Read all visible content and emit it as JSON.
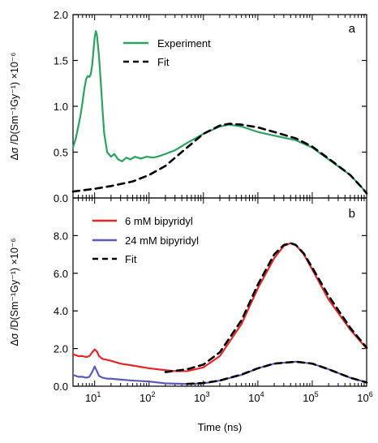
{
  "chart_data": [
    {
      "panel": "a",
      "type": "line",
      "xscale": "log",
      "xlim": [
        4,
        1000000
      ],
      "ylim": [
        0,
        2.0
      ],
      "yticks": [
        "0.0",
        "0.5",
        "1.0",
        "1.5",
        "2.0"
      ],
      "ylabel": "Δσ /D(Sm⁻¹Gy⁻¹) ×10⁻⁶",
      "legend": [
        "Experiment",
        "Fit"
      ],
      "legend_position": "top-center",
      "series": [
        {
          "name": "Experiment",
          "color": "#2ca25f",
          "style": "solid",
          "x": [
            4,
            4.5,
            5,
            5.5,
            6,
            6.5,
            7,
            7.5,
            8,
            8.5,
            9,
            9.5,
            10,
            10.5,
            11,
            12,
            13,
            14,
            15,
            17,
            20,
            23,
            27,
            32,
            38,
            45,
            55,
            70,
            90,
            120,
            160,
            200,
            300,
            500,
            1000,
            2000,
            3000,
            5000,
            10000,
            20000,
            50000,
            100000,
            200000,
            500000,
            800000,
            1000000
          ],
          "y": [
            0.55,
            0.65,
            0.78,
            0.9,
            1.05,
            1.2,
            1.3,
            1.33,
            1.32,
            1.35,
            1.45,
            1.6,
            1.75,
            1.82,
            1.78,
            1.55,
            1.25,
            0.95,
            0.7,
            0.5,
            0.45,
            0.48,
            0.42,
            0.4,
            0.44,
            0.42,
            0.45,
            0.43,
            0.45,
            0.44,
            0.46,
            0.48,
            0.52,
            0.6,
            0.7,
            0.78,
            0.8,
            0.78,
            0.72,
            0.68,
            0.63,
            0.55,
            0.42,
            0.25,
            0.12,
            0.05
          ]
        },
        {
          "name": "Fit",
          "color": "#000000",
          "style": "dashed",
          "x": [
            4,
            10,
            20,
            50,
            100,
            200,
            500,
            1000,
            2000,
            3000,
            5000,
            10000,
            20000,
            50000,
            100000,
            200000,
            500000,
            800000,
            1000000
          ],
          "y": [
            0.07,
            0.1,
            0.13,
            0.18,
            0.25,
            0.35,
            0.55,
            0.7,
            0.79,
            0.81,
            0.8,
            0.77,
            0.72,
            0.65,
            0.56,
            0.43,
            0.25,
            0.12,
            0.05
          ]
        }
      ]
    },
    {
      "panel": "b",
      "type": "line",
      "xscale": "log",
      "xlim": [
        4,
        1000000
      ],
      "ylim": [
        0,
        10.0
      ],
      "yticks": [
        "0.0",
        "2.0",
        "4.0",
        "6.0",
        "8.0"
      ],
      "xticks": [
        "10¹",
        "10²",
        "10³",
        "10⁴",
        "10⁵",
        "10⁶"
      ],
      "xlabel": "Time (ns)",
      "ylabel": "Δσ /D(Sm⁻¹Gy⁻¹) ×10⁻⁶",
      "legend": [
        "6 mM bipyridyl",
        "24 mM bipyridyl",
        "Fit"
      ],
      "legend_position": "top-left",
      "series": [
        {
          "name": "6 mM bipyridyl",
          "color": "#e32626",
          "style": "solid",
          "x": [
            4,
            5,
            6,
            7,
            8,
            9,
            10,
            11,
            12,
            14,
            17,
            20,
            30,
            50,
            100,
            200,
            300,
            500,
            1000,
            2000,
            5000,
            10000,
            20000,
            30000,
            40000,
            50000,
            70000,
            100000,
            200000,
            500000,
            1000000
          ],
          "y": [
            1.7,
            1.6,
            1.6,
            1.55,
            1.6,
            1.8,
            1.95,
            1.85,
            1.6,
            1.45,
            1.4,
            1.35,
            1.2,
            1.1,
            0.95,
            0.85,
            0.8,
            0.8,
            1.0,
            1.6,
            3.3,
            5.2,
            6.8,
            7.45,
            7.6,
            7.5,
            7.0,
            6.2,
            4.6,
            3.0,
            2.0
          ]
        },
        {
          "name": "24 mM bipyridyl",
          "color": "#5a5ab8",
          "style": "solid",
          "x": [
            4,
            5,
            6,
            7,
            8,
            9,
            10,
            11,
            12,
            14,
            17,
            20,
            30,
            50,
            100,
            200,
            500,
            1000,
            2000,
            5000,
            10000,
            20000,
            50000,
            100000,
            200000,
            500000,
            1000000
          ],
          "y": [
            0.6,
            0.5,
            0.5,
            0.45,
            0.5,
            0.75,
            1.05,
            0.8,
            0.55,
            0.45,
            0.4,
            0.4,
            0.35,
            0.3,
            0.25,
            0.15,
            0.12,
            0.15,
            0.3,
            0.6,
            0.95,
            1.2,
            1.3,
            1.2,
            0.9,
            0.45,
            0.2
          ]
        },
        {
          "name": "Fit",
          "color": "#000000",
          "style": "dashed",
          "x": [
            200,
            500,
            1000,
            2000,
            5000,
            10000,
            20000,
            30000,
            40000,
            50000,
            70000,
            100000,
            200000,
            500000,
            1000000
          ],
          "y": [
            0.75,
            0.9,
            1.15,
            1.8,
            3.5,
            5.4,
            7.0,
            7.5,
            7.6,
            7.5,
            7.05,
            6.3,
            4.8,
            3.1,
            2.05
          ]
        },
        {
          "name": "Fit (24 mM)",
          "color": "#000000",
          "style": "dashed",
          "x": [
            500,
            1000,
            2000,
            5000,
            10000,
            20000,
            50000,
            100000,
            200000,
            500000,
            1000000
          ],
          "y": [
            0.12,
            0.17,
            0.3,
            0.62,
            0.95,
            1.2,
            1.3,
            1.2,
            0.9,
            0.45,
            0.2
          ]
        }
      ]
    }
  ],
  "labels": {
    "panel_a_letter": "a",
    "panel_b_letter": "b",
    "ylabel_a": "Δσ /D(Sm⁻¹Gy⁻¹) ×10⁻⁶",
    "ylabel_b": "Δσ /D(Sm⁻¹Gy⁻¹) ×10⁻⁶",
    "xlabel": "Time (ns)",
    "legend_a": [
      "Experiment",
      "Fit"
    ],
    "legend_b": [
      "6 mM bipyridyl",
      "24 mM bipyridyl",
      "Fit"
    ],
    "yticks_a": [
      "0.0",
      "0.5",
      "1.0",
      "1.5",
      "2.0"
    ],
    "yticks_b": [
      "0.0",
      "2.0",
      "4.0",
      "6.0",
      "8.0"
    ],
    "xtick_base": "10",
    "xtick_exps": [
      "1",
      "2",
      "3",
      "4",
      "5",
      "6"
    ]
  }
}
